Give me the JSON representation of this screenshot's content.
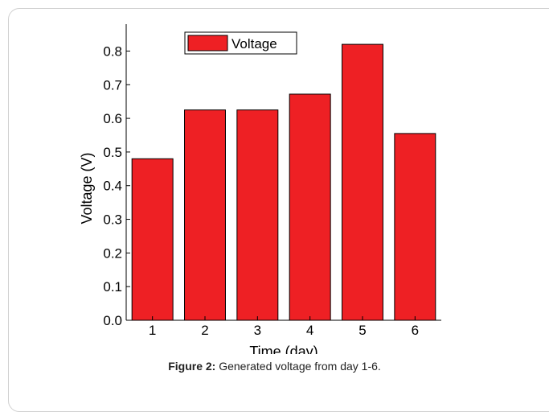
{
  "caption": {
    "label": "Figure 2:",
    "text": " Generated voltage from day 1-6."
  },
  "chart_data": {
    "type": "bar",
    "categories": [
      "1",
      "2",
      "3",
      "4",
      "5",
      "6"
    ],
    "values": [
      0.48,
      0.625,
      0.625,
      0.672,
      0.82,
      0.555
    ],
    "series": [
      {
        "name": "Voltage",
        "values": [
          0.48,
          0.625,
          0.625,
          0.672,
          0.82,
          0.555
        ]
      }
    ],
    "xlabel": "Time (day)",
    "ylabel": "Voltage (V)",
    "ylim": [
      0,
      0.88
    ],
    "yticks": [
      "0.0",
      "0.1",
      "0.2",
      "0.3",
      "0.4",
      "0.5",
      "0.6",
      "0.7",
      "0.8"
    ],
    "legend": "top-left",
    "grid": false,
    "bar_color": "#ee2024"
  }
}
